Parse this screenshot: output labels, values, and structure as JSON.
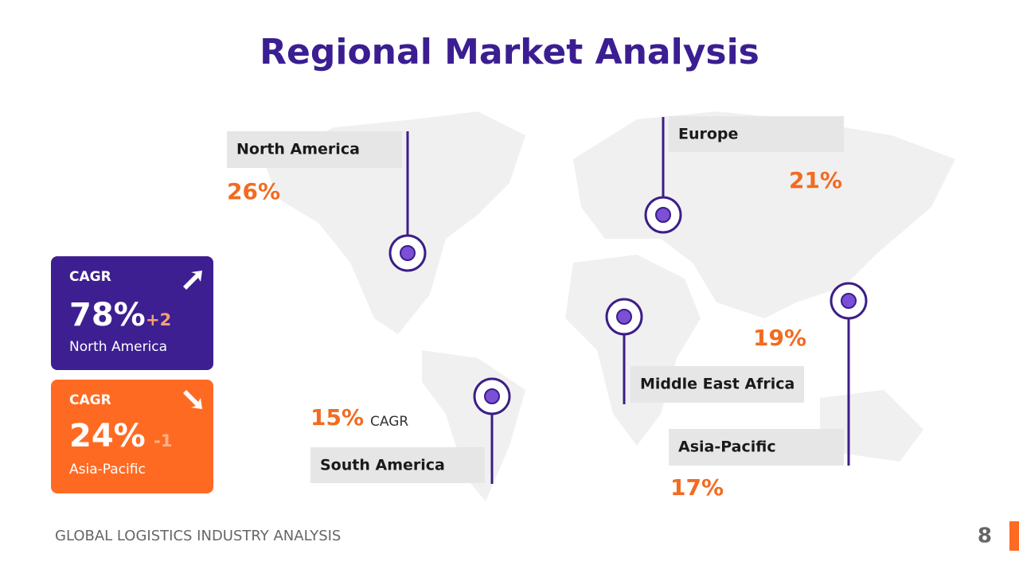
{
  "header": {
    "title": "Regional Market Analysis"
  },
  "regions": [
    {
      "label": "North America",
      "value": "26%"
    },
    {
      "label": "Europe",
      "value": "21%"
    },
    {
      "label": "Middle East Africa",
      "value": "19%"
    },
    {
      "label": "Asia-Pacific",
      "value": "17%"
    },
    {
      "label": "South America",
      "value": "15%",
      "caption": "CAGR"
    }
  ],
  "cards": [
    {
      "label": "CAGR",
      "value": "78%",
      "change": "+2",
      "region": "North America"
    },
    {
      "label": "CAGR",
      "value": "24%",
      "change": "-1",
      "region": "Asia-Pacific"
    }
  ],
  "footer": {
    "text": "GLOBAL LOGISTICS INDUSTRY ANALYSIS",
    "page": "8"
  }
}
